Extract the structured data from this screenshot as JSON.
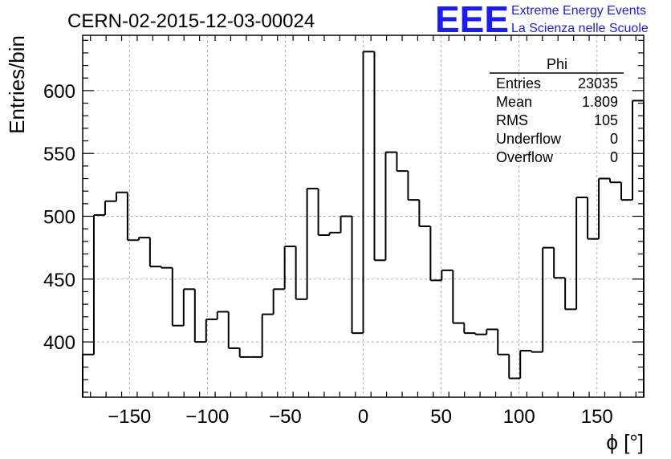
{
  "header": {
    "run_title": "CERN-02-2015-12-03-00024",
    "logo_text": "EEE",
    "logo_line1": "Extreme Energy Events",
    "logo_line2": "La Scienza nelle Scuole",
    "brand_color": "#1a1aff"
  },
  "stats_box": {
    "title": "Phi",
    "rows": [
      {
        "label": "Entries",
        "value": "23035"
      },
      {
        "label": "Mean",
        "value": "1.809"
      },
      {
        "label": "RMS",
        "value": "105"
      },
      {
        "label": "Underflow",
        "value": "0"
      },
      {
        "label": "Overflow",
        "value": "0"
      }
    ]
  },
  "chart_data": {
    "type": "bar",
    "histogram": true,
    "title": "CERN-02-2015-12-03-00024",
    "xlabel": "ϕ [°]",
    "ylabel": "Entries/bin",
    "xlim": [
      -180,
      180
    ],
    "ylim": [
      356,
      644
    ],
    "bin_width": 7.2,
    "grid": true,
    "xticks": [
      -150,
      -100,
      -50,
      0,
      50,
      100,
      150
    ],
    "yticks": [
      400,
      450,
      500,
      550,
      600
    ],
    "values": [
      390,
      501,
      512,
      519,
      481,
      483,
      460,
      459,
      413,
      442,
      400,
      418,
      424,
      395,
      388,
      388,
      422,
      442,
      476,
      434,
      522,
      485,
      487,
      500,
      407,
      631,
      465,
      551,
      536,
      513,
      492,
      449,
      457,
      415,
      407,
      406,
      410,
      390,
      371,
      393,
      392,
      475,
      451,
      426,
      515,
      482,
      530,
      527,
      513,
      592
    ]
  }
}
